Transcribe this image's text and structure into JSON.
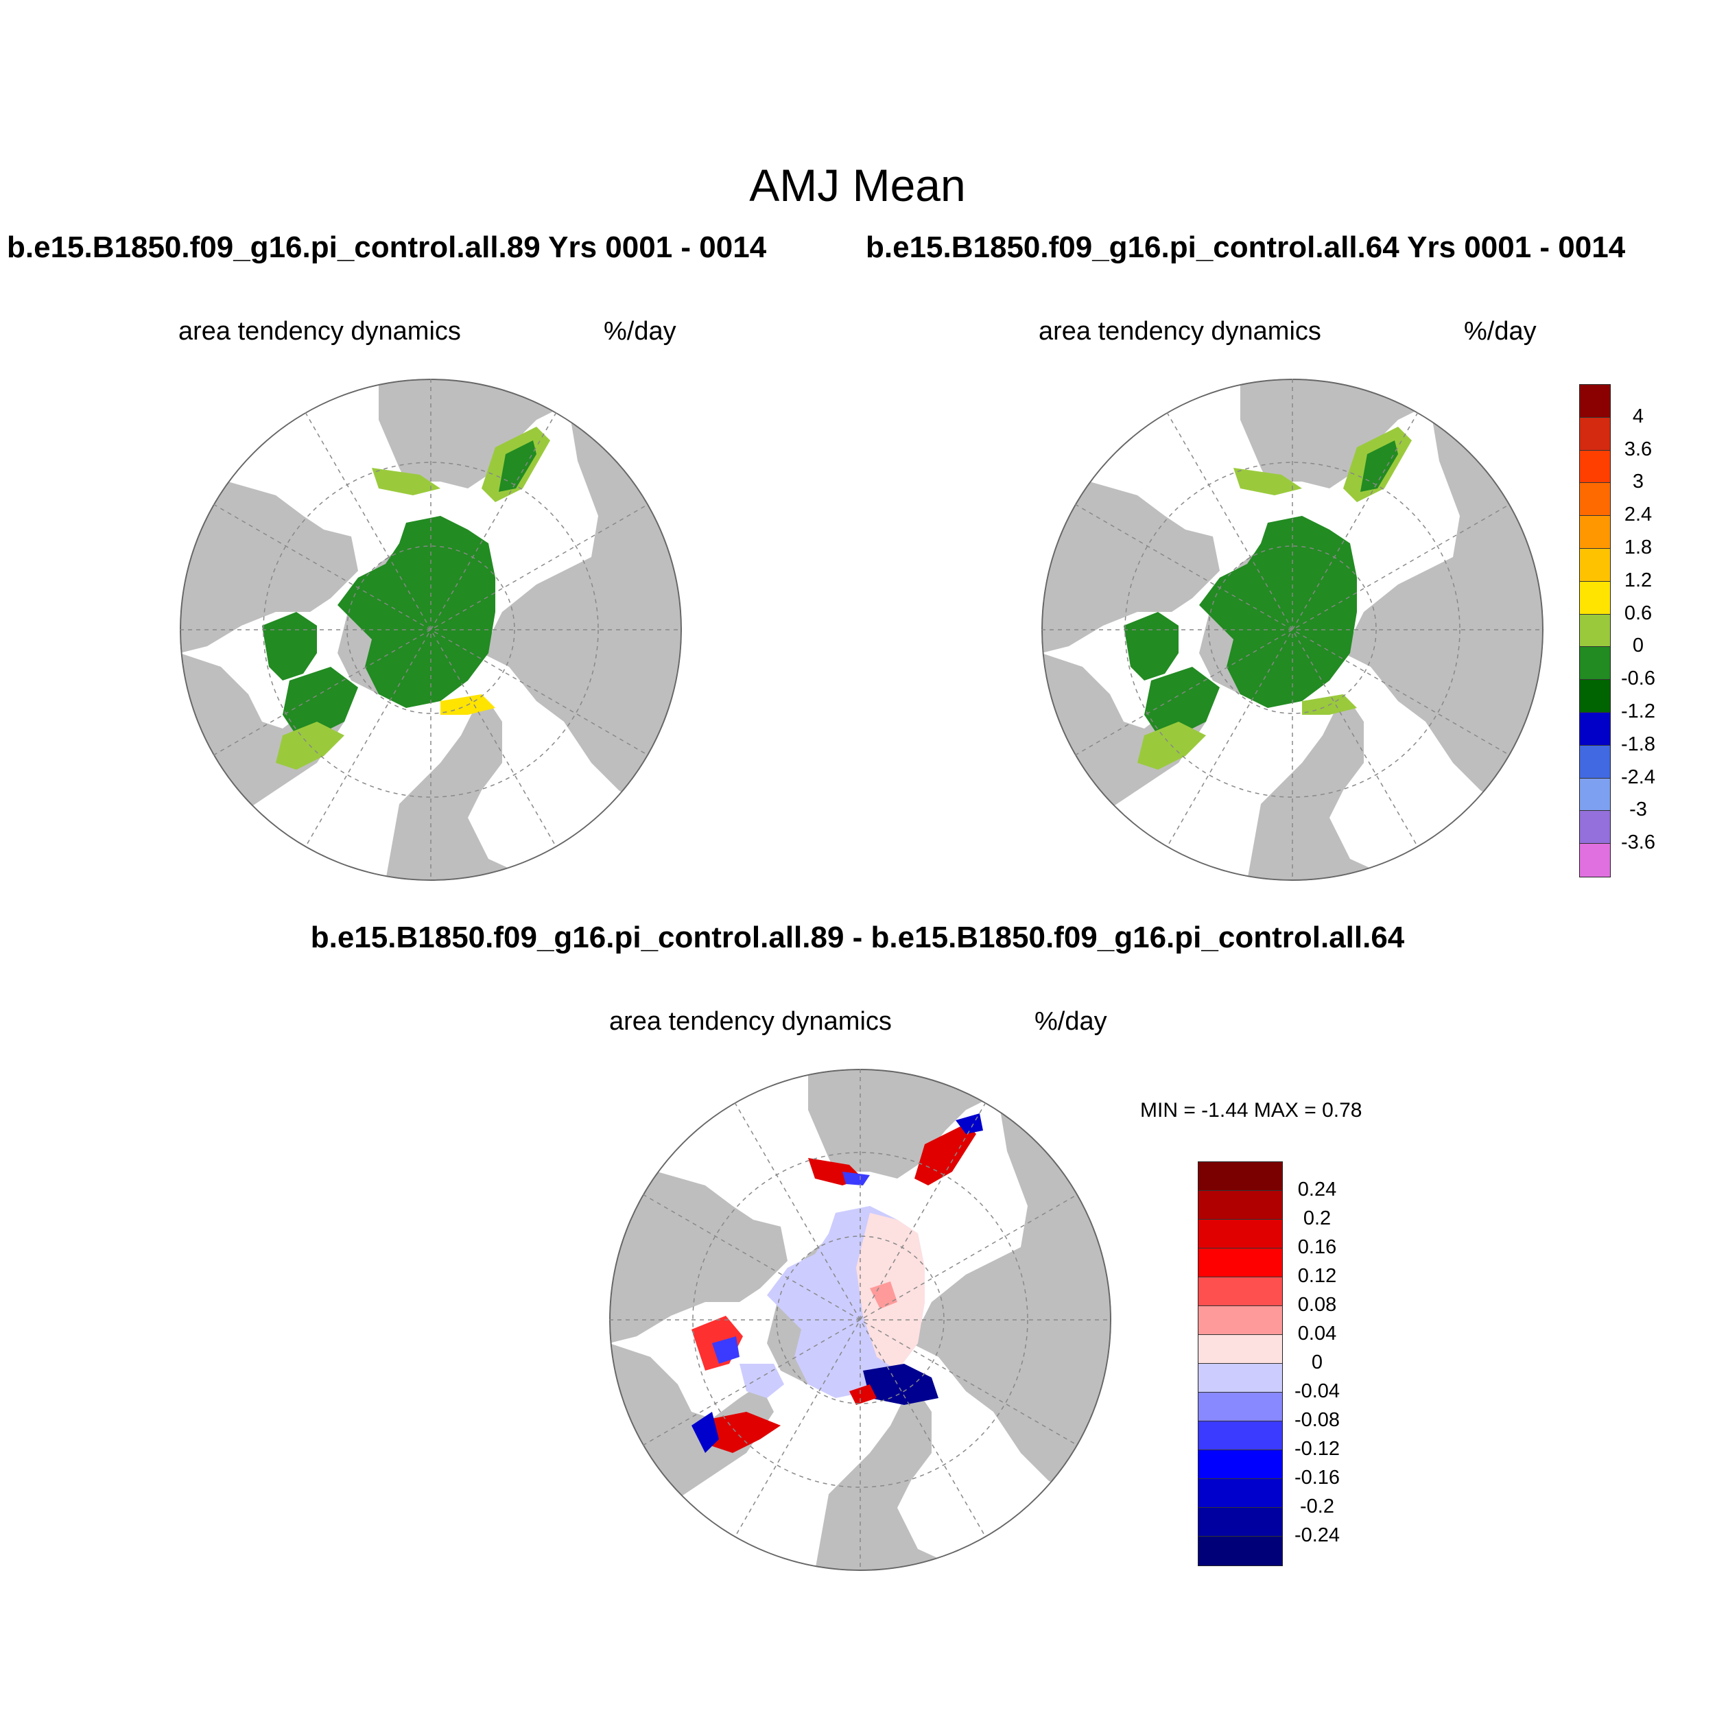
{
  "title": "AMJ Mean",
  "panels": [
    {
      "id": "case1",
      "case_title": "b.e15.B1850.f09_g16.pi_control.all.89  Yrs 0001 - 0014",
      "variable": "area tendency dynamics",
      "units": "%/day"
    },
    {
      "id": "case2",
      "case_title": "b.e15.B1850.f09_g16.pi_control.all.64  Yrs 0001 - 0014",
      "variable": "area tendency dynamics",
      "units": "%/day"
    },
    {
      "id": "difference",
      "case_title": "b.e15.B1850.f09_g16.pi_control.all.89 - b.e15.B1850.f09_g16.pi_control.all.64",
      "variable": "area tendency dynamics",
      "units": "%/day",
      "min_max_text": "MIN =  -1.44 MAX =   0.78"
    }
  ],
  "colorbar_main": {
    "labels": [
      "4",
      "3.6",
      "3",
      "2.4",
      "1.8",
      "1.2",
      "0.6",
      "0",
      "-0.6",
      "-1.2",
      "-1.8",
      "-2.4",
      "-3",
      "-3.6"
    ],
    "colors": [
      "#8b0000",
      "#d42a10",
      "#ff3f00",
      "#ff6a00",
      "#ff9800",
      "#ffc200",
      "#ffe400",
      "#9aca3c",
      "#228b22",
      "#006400",
      "#0000c8",
      "#4169e1",
      "#7ea0f0",
      "#9370db",
      "#e070e0"
    ]
  },
  "colorbar_diff": {
    "labels": [
      "0.24",
      "0.2",
      "0.16",
      "0.12",
      "0.08",
      "0.04",
      "0",
      "-0.04",
      "-0.08",
      "-0.12",
      "-0.16",
      "-0.2",
      "-0.24"
    ],
    "colors": [
      "#7a0000",
      "#b00000",
      "#e00000",
      "#ff0000",
      "#ff5050",
      "#ff9a9a",
      "#fde0e0",
      "#ccccff",
      "#8888ff",
      "#3b3bff",
      "#0000ff",
      "#0000cc",
      "#0000a0",
      "#000078"
    ]
  },
  "colors": {
    "land": "#bebebe",
    "ocean": "#ffffff",
    "grid": "#888888"
  }
}
